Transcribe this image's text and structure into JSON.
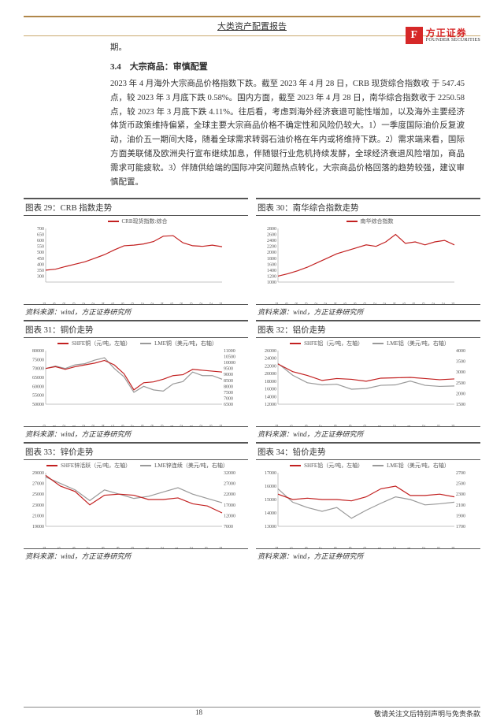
{
  "header": {
    "title": "大类资产配置报告",
    "logo_cn": "方正证券",
    "logo_en": "FOUNDER SECURITIES",
    "logo_mark": "F"
  },
  "section": {
    "pre_text": "期。",
    "heading": "3.4　大宗商品：审慎配置",
    "body": "2023 年 4 月海外大宗商品价格指数下跌。截至 2023 年 4 月 28 日，CRB 现货综合指数收 于 547.45 点，较 2023 年 3 月底下跌 0.58%。国内方面，截至 2023 年 4 月 28 日，南华综合指数收于 2250.58 点，较 2023 年 3 月底下跌 4.11%。往后看，考虑到海外经济衰退可能性增加，以及海外主要经济体货币政策维持偏紧，全球主要大宗商品价格不确定性和风险仍较大。1）一季度国际油价反复波动，油价五一期间大降，随着全球需求转弱石油价格在年内或将维持下跌。2）需求端来看，国际方面美联储及欧洲央行宣布继续加息，伴随银行业危机持续发酵，全球经济衰退风险增加，商品需求可能疲软。3）伴随供给端的国际冲突问题热点转化，大宗商品价格回落的趋势较强，建议审慎配置。"
  },
  "charts": [
    {
      "id": "c29",
      "title": "图表 29：CRB 指数走势",
      "legend": [
        {
          "label": "CRB现货指数:综合",
          "color": "#c22020"
        }
      ],
      "type": "line",
      "y_min": 250,
      "y_max": 700,
      "y_ticks": [
        300,
        350,
        400,
        450,
        500,
        550,
        600,
        650,
        700
      ],
      "x_labels": [
        "2020/04",
        "2020/06",
        "2020/08",
        "2020/10",
        "2020/12",
        "2021/02",
        "2021/04",
        "2021/06",
        "2021/08",
        "2021/10",
        "2021/12",
        "2022/02",
        "2022/04",
        "2022/06",
        "2022/08",
        "2022/10",
        "2022/12",
        "2023/02",
        "2023/04"
      ],
      "series": [
        {
          "color": "#c22020",
          "width": 1.2,
          "data": [
            350,
            358,
            380,
            400,
            420,
            450,
            480,
            520,
            555,
            560,
            570,
            590,
            635,
            640,
            580,
            555,
            550,
            560,
            547
          ]
        }
      ],
      "source": "资料来源：wind，方正证券研究所"
    },
    {
      "id": "c30",
      "title": "图表 30：南华综合指数走势",
      "legend": [
        {
          "label": "南华综合指数",
          "color": "#c22020"
        }
      ],
      "type": "line",
      "y_min": 1000,
      "y_max": 2800,
      "y_ticks": [
        1000,
        1200,
        1400,
        1600,
        1800,
        2000,
        2200,
        2400,
        2600,
        2800
      ],
      "x_labels": [
        "2020/04",
        "2020/06",
        "2020/08",
        "2020/10",
        "2020/12",
        "2021/02",
        "2021/04",
        "2021/06",
        "2021/08",
        "2021/10",
        "2021/12",
        "2022/02",
        "2022/04",
        "2022/06",
        "2022/08",
        "2022/10",
        "2022/12",
        "2023/02",
        "2023/04"
      ],
      "series": [
        {
          "color": "#c22020",
          "width": 1.2,
          "data": [
            1200,
            1280,
            1380,
            1500,
            1650,
            1800,
            1950,
            2050,
            2150,
            2250,
            2200,
            2350,
            2600,
            2300,
            2350,
            2250,
            2350,
            2400,
            2250
          ]
        }
      ],
      "source": "资料来源：wind，方正证券研究所"
    },
    {
      "id": "c31",
      "title": "图表 31：铜价走势",
      "legend": [
        {
          "label": "SHFE铜（元/吨，左轴）",
          "color": "#c22020"
        },
        {
          "label": "LME铜（美元/吨，右轴）",
          "color": "#999999"
        }
      ],
      "type": "line2",
      "y_min": 50000,
      "y_max": 80000,
      "y_ticks": [
        50000,
        55000,
        60000,
        65000,
        70000,
        75000,
        80000
      ],
      "y2_min": 6500,
      "y2_max": 11000,
      "y2_ticks": [
        6500,
        7000,
        7500,
        8000,
        8500,
        9000,
        9500,
        10000,
        10500,
        11000
      ],
      "x_labels": [
        "2021/10",
        "2021/11",
        "2021/12",
        "2022/01",
        "2022/02",
        "2022/03",
        "2022/04",
        "2022/05",
        "2022/06",
        "2022/07",
        "2022/08",
        "2022/09",
        "2022/10",
        "2022/11",
        "2022/12",
        "2023/01",
        "2023/02",
        "2023/03",
        "2023/04"
      ],
      "series": [
        {
          "color": "#c22020",
          "width": 1.2,
          "data": [
            70000,
            71000,
            69500,
            71000,
            72000,
            73000,
            74500,
            72000,
            67000,
            58000,
            62000,
            62500,
            64000,
            66000,
            66500,
            69500,
            69000,
            68500,
            68000
          ]
        }
      ],
      "series2": [
        {
          "color": "#999999",
          "width": 1.2,
          "data": [
            9500,
            9700,
            9500,
            9800,
            9900,
            10200,
            10400,
            9500,
            8800,
            7500,
            8000,
            7700,
            7600,
            8200,
            8400,
            9200,
            8900,
            8900,
            8600
          ]
        }
      ],
      "source": "资料来源：wind，方正证券研究所"
    },
    {
      "id": "c32",
      "title": "图表 32：铝价走势",
      "legend": [
        {
          "label": "SHFE铝（元/吨，左轴）",
          "color": "#c22020"
        },
        {
          "label": "LME铝（美元/吨，右轴）",
          "color": "#999999"
        }
      ],
      "type": "line2",
      "y_min": 12000,
      "y_max": 26000,
      "y_ticks": [
        12000,
        14000,
        16000,
        18000,
        20000,
        22000,
        24000,
        26000
      ],
      "y2_min": 1500,
      "y2_max": 4000,
      "y2_ticks": [
        1500,
        2000,
        2500,
        3000,
        3500,
        4000
      ],
      "x_labels": [
        "2022/04",
        "2022/05",
        "2022/06",
        "2022/07",
        "2022/08",
        "2022/09",
        "2022/10",
        "2022/11",
        "2022/12",
        "2023/01",
        "2023/02",
        "2023/03",
        "2023/04"
      ],
      "series": [
        {
          "color": "#c22020",
          "width": 1.2,
          "data": [
            22500,
            20500,
            19500,
            18200,
            18700,
            18500,
            18000,
            18800,
            18900,
            19000,
            18700,
            18400,
            18600
          ]
        }
      ],
      "series2": [
        {
          "color": "#999999",
          "width": 1.2,
          "data": [
            3400,
            2850,
            2500,
            2400,
            2430,
            2200,
            2230,
            2380,
            2400,
            2580,
            2380,
            2330,
            2350
          ]
        }
      ],
      "source": "资料来源：wind，方正证券研究所"
    },
    {
      "id": "c33",
      "title": "图表 33：锌价走势",
      "legend": [
        {
          "label": "SHFE锌活跃（元/吨，左轴）",
          "color": "#c22020"
        },
        {
          "label": "LME锌连续（美元/吨，右轴）",
          "color": "#999999"
        }
      ],
      "type": "line2",
      "y_min": 19000,
      "y_max": 29000,
      "y_ticks": [
        19000,
        21000,
        23000,
        25000,
        27000,
        29000
      ],
      "y2_min": 7000,
      "y2_max": 32000,
      "y2_ticks": [
        7000,
        12000,
        17000,
        22000,
        27000,
        32000
      ],
      "x_labels": [
        "2022/04",
        "2022/05",
        "2022/06",
        "2022/07",
        "2022/08",
        "2022/09",
        "2022/10",
        "2022/11",
        "2022/12",
        "2023/01",
        "2023/02",
        "2023/03",
        "2023/04"
      ],
      "series": [
        {
          "color": "#c22020",
          "width": 1.2,
          "data": [
            28500,
            26500,
            25500,
            23000,
            24800,
            25000,
            24800,
            24000,
            24000,
            24300,
            23200,
            22800,
            21500
          ]
        }
      ],
      "series2": [
        {
          "color": "#999999",
          "width": 1.2,
          "data": [
            30000,
            27000,
            24000,
            19000,
            24000,
            22000,
            20000,
            21000,
            23000,
            25000,
            22000,
            20000,
            18000
          ]
        }
      ],
      "source": "资料来源：wind，方正证券研究所"
    },
    {
      "id": "c34",
      "title": "图表 34：铅价走势",
      "legend": [
        {
          "label": "SHFE铅（元/吨，左轴）",
          "color": "#c22020"
        },
        {
          "label": "LME铅（美元/吨，右轴）",
          "color": "#999999"
        }
      ],
      "type": "line2",
      "y_min": 13000,
      "y_max": 17000,
      "y_ticks": [
        13000,
        14000,
        15000,
        16000,
        17000
      ],
      "y2_min": 1700,
      "y2_max": 2700,
      "y2_ticks": [
        1700,
        1900,
        2100,
        2300,
        2500,
        2700
      ],
      "x_labels": [
        "2022/04",
        "2022/05",
        "2022/06",
        "2022/07",
        "2022/08",
        "2022/09",
        "2022/10",
        "2022/11",
        "2022/12",
        "2023/01",
        "2023/02",
        "2023/03",
        "2023/04"
      ],
      "series": [
        {
          "color": "#c22020",
          "width": 1.2,
          "data": [
            15400,
            15000,
            15100,
            15000,
            15000,
            14900,
            15200,
            15800,
            16000,
            15300,
            15300,
            15400,
            15200
          ]
        }
      ],
      "series2": [
        {
          "color": "#999999",
          "width": 1.2,
          "data": [
            2400,
            2150,
            2050,
            1980,
            2050,
            1850,
            2000,
            2130,
            2250,
            2200,
            2100,
            2120,
            2150
          ]
        }
      ],
      "source": "资料来源：wind，方正证券研究所"
    }
  ],
  "footer": {
    "page": "18",
    "disclaimer": "敬请关注文后特别声明与免责条款"
  }
}
